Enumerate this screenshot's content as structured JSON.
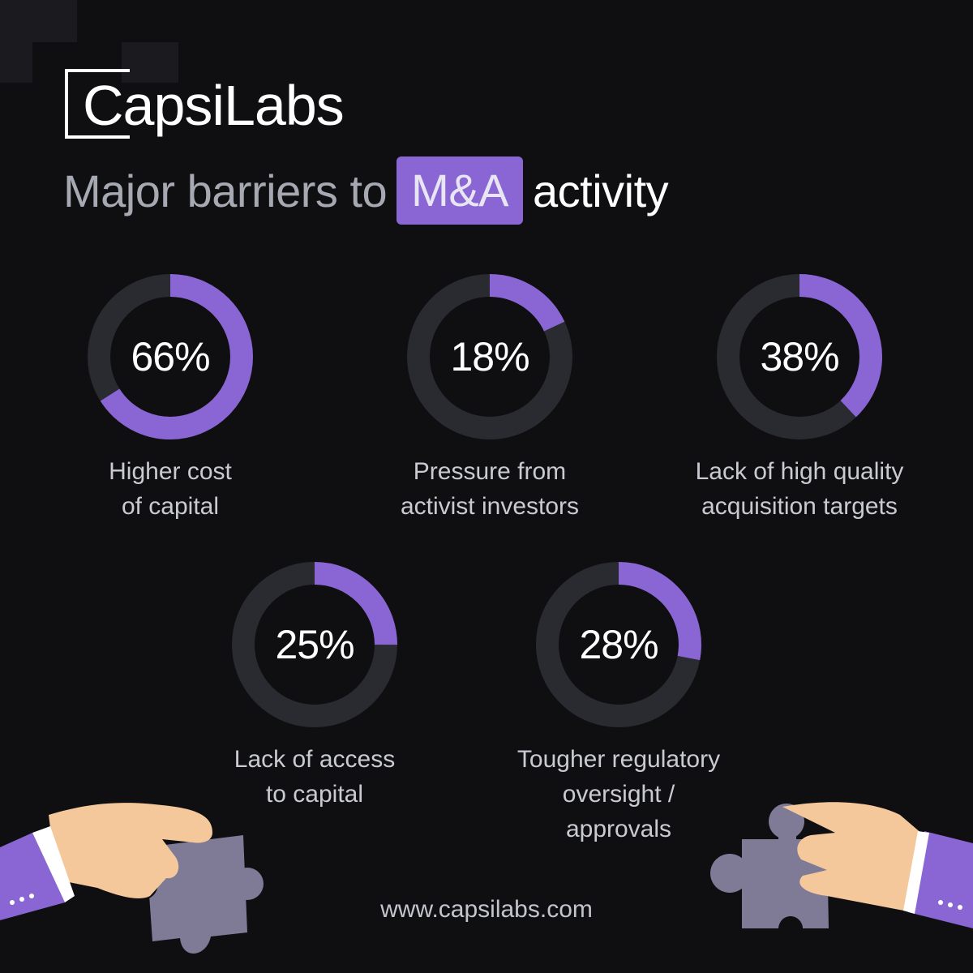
{
  "brand": {
    "name": "CapsiLabs"
  },
  "headline": {
    "pre": "Major barriers to",
    "highlight": "M&A",
    "post": "activity"
  },
  "colors": {
    "background": "#0f0f12",
    "accent": "#8a66d4",
    "track": "#2a2b30",
    "text": "#ffffff",
    "muted_text": "#c9cbd1"
  },
  "chart_data": {
    "type": "pie",
    "items": [
      {
        "label_lines": [
          "Higher cost",
          "of capital"
        ],
        "value": 66,
        "display": "66%"
      },
      {
        "label_lines": [
          "Pressure from",
          "activist investors"
        ],
        "value": 18,
        "display": "18%"
      },
      {
        "label_lines": [
          "Lack of high quality",
          "acquisition targets"
        ],
        "value": 38,
        "display": "38%"
      },
      {
        "label_lines": [
          "Lack of access",
          "to capital"
        ],
        "value": 25,
        "display": "25%"
      },
      {
        "label_lines": [
          "Tougher regulatory",
          "oversight /",
          "approvals"
        ],
        "value": 28,
        "display": "28%"
      }
    ]
  },
  "footer": {
    "website": "www.capsilabs.com"
  }
}
